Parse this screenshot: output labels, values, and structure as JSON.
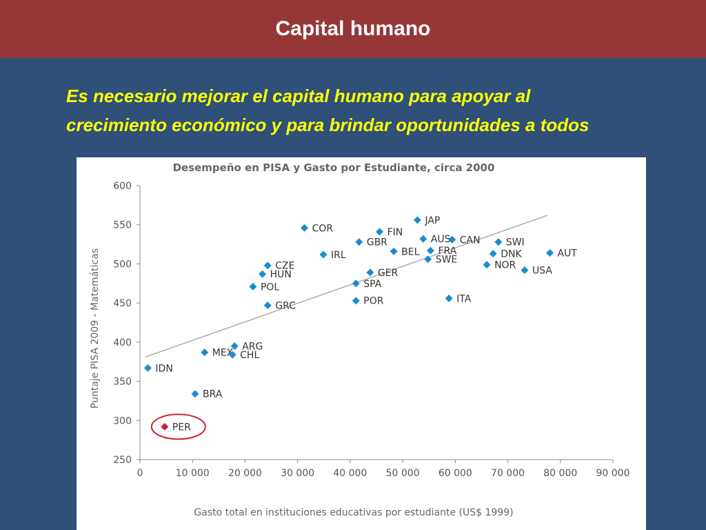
{
  "slide": {
    "title": "Capital humano",
    "subtitle_line1": "Es necesario mejorar el capital humano para apoyar al",
    "subtitle_line2": "crecimiento económico y para brindar oportunidades a todos"
  },
  "colors": {
    "title_bar": "#953737",
    "background": "#2e5079",
    "subtitle_text": "#ffff00",
    "point": "#1b8ccf",
    "highlight_point": "#d0202e",
    "highlight_ring": "#d0202e",
    "trend_line": "#9a9a9a"
  },
  "chart_data": {
    "type": "scatter",
    "title": "Desempeño en PISA y Gasto por Estudiante, circa 2000",
    "xlabel": "Gasto total en instituciones educativas por estudiante (US$ 1999)",
    "ylabel": "Puntaje PISA 2009 - Matemáticas",
    "xlim": [
      0,
      90000
    ],
    "ylim": [
      250,
      600
    ],
    "x_ticks": [
      0,
      10000,
      20000,
      30000,
      40000,
      50000,
      60000,
      70000,
      80000,
      90000
    ],
    "x_tick_labels": [
      "0",
      "10 000",
      "20 000",
      "30 000",
      "40 000",
      "50 000",
      "60 000",
      "70 000",
      "80 000",
      "90 000"
    ],
    "y_ticks": [
      250,
      300,
      350,
      400,
      450,
      500,
      550,
      600
    ],
    "y_tick_labels": [
      "250",
      "300",
      "350",
      "400",
      "450",
      "500",
      "550",
      "600"
    ],
    "grid": false,
    "trend_line": {
      "x": [
        1000,
        77500
      ],
      "y": [
        381,
        562
      ]
    },
    "highlight": "PER",
    "points": [
      {
        "label": "IDN",
        "x": 1500,
        "y": 367
      },
      {
        "label": "PER",
        "x": 4700,
        "y": 292
      },
      {
        "label": "BRA",
        "x": 10500,
        "y": 334
      },
      {
        "label": "MEX",
        "x": 12300,
        "y": 387
      },
      {
        "label": "ARG",
        "x": 18000,
        "y": 395
      },
      {
        "label": "CHL",
        "x": 17600,
        "y": 384
      },
      {
        "label": "POL",
        "x": 21500,
        "y": 471
      },
      {
        "label": "HUN",
        "x": 23300,
        "y": 487
      },
      {
        "label": "CZE",
        "x": 24300,
        "y": 498
      },
      {
        "label": "GRC",
        "x": 24300,
        "y": 447
      },
      {
        "label": "COR",
        "x": 31300,
        "y": 546
      },
      {
        "label": "IRL",
        "x": 34900,
        "y": 512
      },
      {
        "label": "SPA",
        "x": 41100,
        "y": 475
      },
      {
        "label": "POR",
        "x": 41100,
        "y": 453
      },
      {
        "label": "GBR",
        "x": 41700,
        "y": 528
      },
      {
        "label": "GER",
        "x": 43800,
        "y": 489
      },
      {
        "label": "FIN",
        "x": 45600,
        "y": 541
      },
      {
        "label": "BEL",
        "x": 48300,
        "y": 516
      },
      {
        "label": "JAP",
        "x": 52800,
        "y": 556
      },
      {
        "label": "AUS",
        "x": 53900,
        "y": 532
      },
      {
        "label": "FRA",
        "x": 55300,
        "y": 517
      },
      {
        "label": "SWE",
        "x": 54800,
        "y": 506
      },
      {
        "label": "ITA",
        "x": 58800,
        "y": 456
      },
      {
        "label": "CAN",
        "x": 59400,
        "y": 531
      },
      {
        "label": "NOR",
        "x": 66000,
        "y": 499
      },
      {
        "label": "DNK",
        "x": 67200,
        "y": 513
      },
      {
        "label": "SWI",
        "x": 68200,
        "y": 528
      },
      {
        "label": "USA",
        "x": 73200,
        "y": 492
      },
      {
        "label": "AUT",
        "x": 78000,
        "y": 514
      }
    ]
  }
}
